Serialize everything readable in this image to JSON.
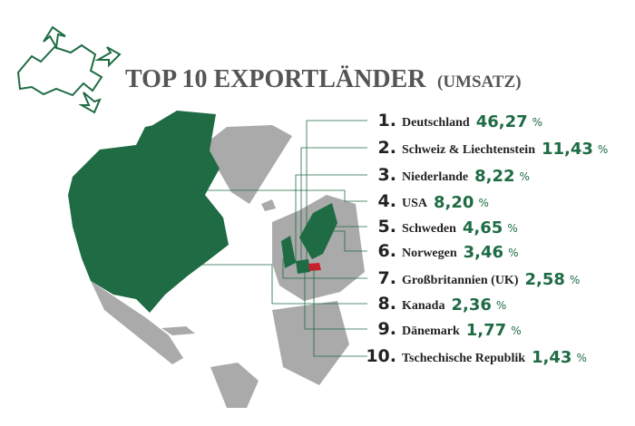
{
  "header": {
    "title": "TOP 10 EXPORTLÄNDER",
    "subtitle": "(UMSATZ)"
  },
  "items": [
    {
      "rank": "1.",
      "country": "Deutschland",
      "share": "46,27",
      "unit": "%"
    },
    {
      "rank": "2.",
      "country": "Schweiz & Liechtenstein",
      "share": "11,43",
      "unit": "%"
    },
    {
      "rank": "3.",
      "country": "Niederlande",
      "share": "8,22",
      "unit": "%"
    },
    {
      "rank": "4.",
      "country": "USA",
      "share": "8,20",
      "unit": "%"
    },
    {
      "rank": "5.",
      "country": "Schweden",
      "share": "4,65",
      "unit": "%"
    },
    {
      "rank": "6.",
      "country": "Norwegen",
      "share": "3,46",
      "unit": "%"
    },
    {
      "rank": "7.",
      "country": "Großbritannien (UK)",
      "share": "2,58",
      "unit": "%"
    },
    {
      "rank": "8.",
      "country": "Kanada",
      "share": "2,36",
      "unit": "%"
    },
    {
      "rank": "9.",
      "country": "Dänemark",
      "share": "1,77",
      "unit": "%"
    },
    {
      "rank": "10.",
      "country": "Tschechische Republik",
      "share": "1,43",
      "unit": "%"
    }
  ]
}
